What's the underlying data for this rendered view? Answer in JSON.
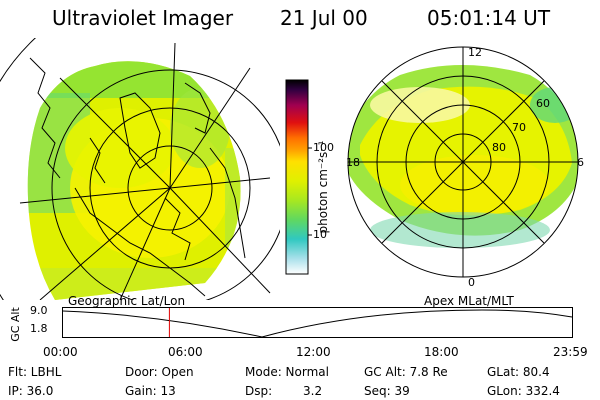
{
  "header": {
    "title": "Ultraviolet Imager",
    "date": "21 Jul 00",
    "time": "05:01:14 UT"
  },
  "colorbar": {
    "unit_label": "photon cm⁻²s⁻¹",
    "ticks": [
      "100",
      "10"
    ]
  },
  "left_panel": {
    "caption": "Geographic Lat/Lon"
  },
  "right_panel": {
    "caption": "Apex MLat/MLT",
    "mlt_labels": {
      "top": "12",
      "bottom": "0",
      "left": "18",
      "right": "6"
    },
    "lat_labels": [
      "60",
      "70",
      "80"
    ]
  },
  "timeline": {
    "ylabel": "GC Alt",
    "y_ticks": [
      "9.0",
      "1.8"
    ],
    "x_ticks": [
      "00:00",
      "06:00",
      "12:00",
      "18:00",
      "23:59"
    ],
    "marker_time": "05:01",
    "marker_color": "#e00000"
  },
  "info": {
    "row1": {
      "flt": "Flt: LBHL",
      "door": "Door: Open",
      "mode": "Mode: Normal",
      "gcalt": "GC Alt: 7.8 Re",
      "glat": "GLat: 80.4"
    },
    "row2": {
      "ip": "IP: 36.0",
      "gain": "Gain: 13",
      "dsp_label": "Dsp:",
      "dsp_value": "3.2",
      "seq": "Seq: 39",
      "glon": "GLon: 332.4"
    }
  }
}
